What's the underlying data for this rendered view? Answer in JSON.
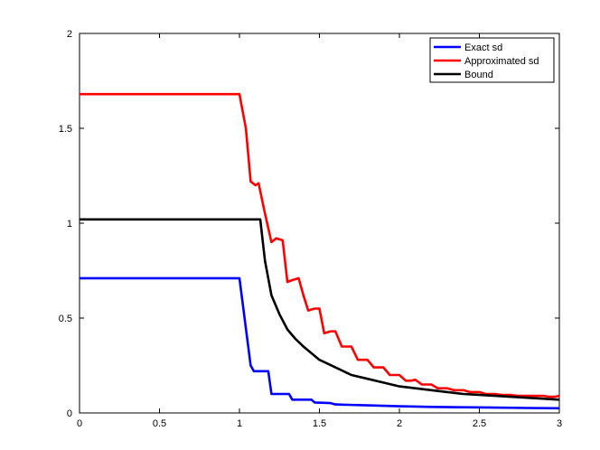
{
  "chart_data": {
    "type": "line",
    "title": "",
    "xlabel": "",
    "ylabel": "",
    "xlim": [
      0,
      3
    ],
    "ylim": [
      0,
      2
    ],
    "xticks": [
      0,
      0.5,
      1,
      1.5,
      2,
      2.5,
      3
    ],
    "xtick_labels": [
      "0",
      "0.5",
      "1",
      "1.5",
      "2",
      "2.5",
      "3"
    ],
    "yticks": [
      0,
      0.5,
      1,
      1.5,
      2
    ],
    "ytick_labels": [
      "0",
      "0.5",
      "1",
      "1.5",
      "2"
    ],
    "grid": false,
    "legend_position": "top-right",
    "series": [
      {
        "name": "Exact sd",
        "color": "#0000ff",
        "x": [
          0,
          1.0,
          1.07,
          1.09,
          1.13,
          1.18,
          1.2,
          1.27,
          1.31,
          1.33,
          1.42,
          1.45,
          1.47,
          1.57,
          1.6,
          1.8,
          2.0,
          2.2,
          2.4,
          2.6,
          2.8,
          3.0
        ],
        "y": [
          0.71,
          0.71,
          0.25,
          0.22,
          0.22,
          0.22,
          0.1,
          0.1,
          0.1,
          0.07,
          0.07,
          0.07,
          0.055,
          0.052,
          0.045,
          0.04,
          0.035,
          0.032,
          0.03,
          0.028,
          0.026,
          0.025
        ]
      },
      {
        "name": "Approximated sd",
        "color": "#ff0000",
        "x": [
          0,
          1.0,
          1.04,
          1.07,
          1.1,
          1.12,
          1.16,
          1.2,
          1.23,
          1.27,
          1.3,
          1.33,
          1.37,
          1.4,
          1.43,
          1.47,
          1.5,
          1.53,
          1.57,
          1.6,
          1.64,
          1.67,
          1.7,
          1.74,
          1.77,
          1.8,
          1.84,
          1.87,
          1.9,
          1.94,
          1.97,
          2.0,
          2.04,
          2.07,
          2.1,
          2.14,
          2.17,
          2.2,
          2.24,
          2.27,
          2.3,
          2.34,
          2.37,
          2.4,
          2.44,
          2.47,
          2.5,
          2.54,
          2.57,
          2.6,
          2.64,
          2.67,
          2.7,
          2.74,
          2.77,
          2.8,
          2.84,
          2.87,
          2.9,
          2.94,
          2.97,
          3.0
        ],
        "y": [
          1.68,
          1.68,
          1.5,
          1.22,
          1.2,
          1.21,
          1.05,
          0.9,
          0.92,
          0.91,
          0.69,
          0.7,
          0.71,
          0.62,
          0.54,
          0.55,
          0.55,
          0.42,
          0.43,
          0.43,
          0.35,
          0.35,
          0.35,
          0.28,
          0.28,
          0.28,
          0.24,
          0.24,
          0.24,
          0.2,
          0.2,
          0.2,
          0.17,
          0.17,
          0.175,
          0.15,
          0.15,
          0.15,
          0.13,
          0.13,
          0.13,
          0.12,
          0.12,
          0.12,
          0.11,
          0.11,
          0.11,
          0.1,
          0.1,
          0.1,
          0.095,
          0.095,
          0.095,
          0.09,
          0.09,
          0.09,
          0.09,
          0.09,
          0.09,
          0.085,
          0.085,
          0.09
        ]
      },
      {
        "name": "Bound",
        "color": "#000000",
        "x": [
          0,
          1.13,
          1.16,
          1.2,
          1.25,
          1.3,
          1.35,
          1.4,
          1.5,
          1.6,
          1.7,
          1.8,
          1.9,
          2.0,
          2.2,
          2.4,
          2.6,
          2.8,
          3.0
        ],
        "y": [
          1.02,
          1.02,
          0.8,
          0.62,
          0.52,
          0.44,
          0.39,
          0.35,
          0.28,
          0.24,
          0.2,
          0.18,
          0.16,
          0.14,
          0.12,
          0.1,
          0.09,
          0.08,
          0.07
        ]
      }
    ]
  }
}
